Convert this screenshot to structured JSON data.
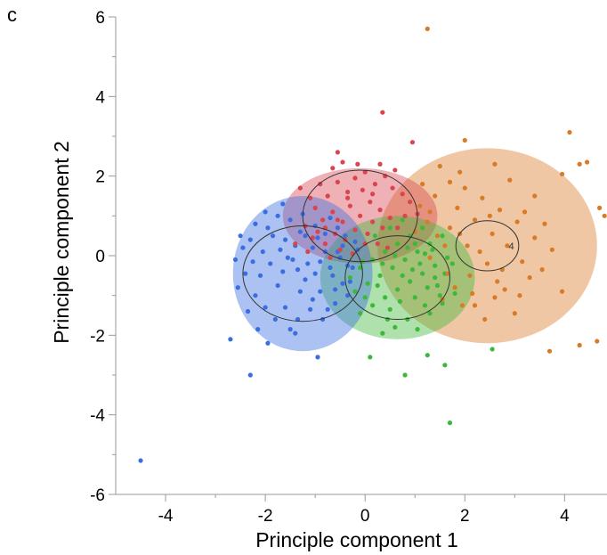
{
  "panel_label": "c",
  "chart_data": {
    "type": "scatter",
    "xlabel": "Principle component 1",
    "ylabel": "Principle component 2",
    "xlim": [
      -5,
      4.85
    ],
    "ylim": [
      -6,
      6
    ],
    "xticks": [
      -4,
      -2,
      0,
      2,
      4
    ],
    "yticks": [
      -6,
      -4,
      -2,
      0,
      2,
      4,
      6
    ],
    "grid": false,
    "colors": {
      "blue": "#3a6ee0",
      "red": "#d9444f",
      "green": "#3db83a",
      "orange": "#d97a26"
    },
    "clusters": [
      {
        "color": "orange",
        "center": [
          2.45,
          0.25
        ],
        "rx": 2.2,
        "ry": 2.45,
        "circle_r": 0.63,
        "label": "4"
      },
      {
        "color": "red",
        "center": [
          -0.1,
          1.0
        ],
        "rx": 1.55,
        "ry": 1.2,
        "circle_r": 1.15,
        "label": ""
      },
      {
        "color": "green",
        "center": [
          0.65,
          -0.55
        ],
        "rx": 1.55,
        "ry": 1.55,
        "circle_r": 1.05,
        "label": ""
      },
      {
        "color": "blue",
        "center": [
          -1.25,
          -0.45
        ],
        "rx": 1.4,
        "ry": 1.95,
        "circle_r": 1.2,
        "label": ""
      }
    ],
    "points": [
      {
        "color": "blue",
        "xy": [
          [
            -4.5,
            -5.15
          ],
          [
            -2.7,
            -2.1
          ],
          [
            -2.3,
            -3.0
          ],
          [
            -1.95,
            -2.2
          ],
          [
            -1.4,
            -1.95
          ],
          [
            -0.95,
            -2.55
          ],
          [
            -2.35,
            -1.4
          ],
          [
            -2.55,
            -0.8
          ],
          [
            -2.45,
            0.2
          ],
          [
            -2.2,
            0.8
          ],
          [
            -2.0,
            1.1
          ],
          [
            -1.75,
            1.0
          ],
          [
            -1.6,
            0.4
          ],
          [
            -1.45,
            -0.1
          ],
          [
            -1.3,
            0.6
          ],
          [
            -1.2,
            -0.6
          ],
          [
            -1.05,
            0.2
          ],
          [
            -0.9,
            -0.9
          ],
          [
            -0.8,
            0.55
          ],
          [
            -0.7,
            -0.3
          ],
          [
            -0.55,
            0.1
          ],
          [
            -0.45,
            -0.7
          ],
          [
            -1.9,
            -0.2
          ],
          [
            -1.75,
            -0.75
          ],
          [
            -2.1,
            -0.5
          ],
          [
            -2.2,
            -1.0
          ],
          [
            -1.6,
            -1.3
          ],
          [
            -1.35,
            -1.6
          ],
          [
            -1.1,
            -1.35
          ],
          [
            -0.85,
            -1.6
          ],
          [
            -0.6,
            -1.2
          ],
          [
            -0.35,
            -1.0
          ],
          [
            -2.3,
            0.4
          ],
          [
            -2.05,
            0.1
          ],
          [
            -1.85,
            0.5
          ],
          [
            -1.5,
            0.9
          ],
          [
            -1.25,
            1.05
          ],
          [
            -1.0,
            0.75
          ],
          [
            -0.7,
            0.95
          ],
          [
            -0.4,
            0.5
          ],
          [
            -0.25,
            -0.3
          ],
          [
            -0.15,
            0.15
          ],
          [
            -2.6,
            -0.1
          ],
          [
            -2.4,
            -0.45
          ],
          [
            -1.65,
            -0.4
          ],
          [
            -1.4,
            0.25
          ],
          [
            -1.15,
            -0.2
          ],
          [
            -0.95,
            0.45
          ],
          [
            -0.65,
            -0.5
          ],
          [
            -0.5,
            -0.05
          ],
          [
            -1.8,
            -1.6
          ],
          [
            -1.5,
            -1.85
          ],
          [
            -2.0,
            -1.3
          ],
          [
            -0.75,
            -1.35
          ],
          [
            -0.3,
            -0.65
          ],
          [
            -1.3,
            -0.9
          ],
          [
            -1.0,
            -0.45
          ],
          [
            -0.8,
            0.1
          ],
          [
            -0.55,
            0.7
          ],
          [
            -0.35,
            -0.25
          ],
          [
            -2.15,
            -1.85
          ],
          [
            -1.65,
            1.3
          ],
          [
            -1.95,
            0.7
          ],
          [
            -2.5,
            0.5
          ],
          [
            -2.25,
            -0.15
          ],
          [
            -1.55,
            -0.05
          ],
          [
            -1.05,
            -1.1
          ],
          [
            -0.6,
            -0.85
          ],
          [
            -0.2,
            0.35
          ],
          [
            -1.7,
            0.15
          ],
          [
            -1.35,
            -0.35
          ],
          [
            -1.2,
            0.5
          ],
          [
            -0.9,
            -0.15
          ],
          [
            -0.45,
            0.25
          ]
        ]
      },
      {
        "color": "red",
        "xy": [
          [
            0.35,
            3.6
          ],
          [
            0.95,
            2.85
          ],
          [
            -0.55,
            2.6
          ],
          [
            -0.45,
            2.35
          ],
          [
            -1.3,
            1.7
          ],
          [
            -0.9,
            1.8
          ],
          [
            -0.75,
            1.5
          ],
          [
            -0.55,
            1.85
          ],
          [
            -0.35,
            1.6
          ],
          [
            -0.2,
            1.95
          ],
          [
            0.0,
            2.1
          ],
          [
            0.2,
            1.8
          ],
          [
            0.4,
            2.0
          ],
          [
            0.55,
            1.7
          ],
          [
            0.75,
            1.55
          ],
          [
            0.9,
            1.35
          ],
          [
            1.05,
            1.05
          ],
          [
            -1.0,
            1.2
          ],
          [
            -0.85,
            0.9
          ],
          [
            -0.65,
            1.1
          ],
          [
            -0.45,
            0.85
          ],
          [
            -0.3,
            1.25
          ],
          [
            -0.1,
            1.0
          ],
          [
            0.1,
            1.35
          ],
          [
            0.3,
            1.15
          ],
          [
            0.5,
            0.95
          ],
          [
            0.65,
            0.7
          ],
          [
            -1.2,
            0.75
          ],
          [
            -1.05,
            0.45
          ],
          [
            -0.8,
            0.3
          ],
          [
            -0.6,
            0.55
          ],
          [
            -0.4,
            0.4
          ],
          [
            -0.2,
            0.65
          ],
          [
            0.05,
            0.55
          ],
          [
            0.25,
            0.3
          ],
          [
            0.45,
            0.2
          ],
          [
            -1.4,
            0.3
          ],
          [
            -1.15,
            0.1
          ],
          [
            -0.7,
            -0.05
          ],
          [
            -0.5,
            0.15
          ],
          [
            -0.25,
            0.05
          ],
          [
            0.15,
            0.85
          ],
          [
            -0.65,
            2.2
          ],
          [
            -0.15,
            2.3
          ],
          [
            0.3,
            2.3
          ],
          [
            0.6,
            2.15
          ],
          [
            -1.1,
            1.45
          ],
          [
            -0.95,
            0.6
          ],
          [
            0.8,
            1.0
          ],
          [
            -0.35,
            1.45
          ],
          [
            0.0,
            0.3
          ],
          [
            -0.05,
            1.65
          ],
          [
            0.35,
            0.7
          ],
          [
            -0.55,
            0.9
          ],
          [
            -0.8,
            0.7
          ],
          [
            0.15,
            1.55
          ]
        ]
      },
      {
        "color": "green",
        "xy": [
          [
            1.7,
            -4.2
          ],
          [
            0.8,
            -3.0
          ],
          [
            1.25,
            -2.5
          ],
          [
            1.6,
            -2.75
          ],
          [
            0.1,
            -2.55
          ],
          [
            2.55,
            -2.35
          ],
          [
            0.35,
            -1.95
          ],
          [
            0.6,
            -1.8
          ],
          [
            0.85,
            -1.6
          ],
          [
            1.05,
            -1.85
          ],
          [
            1.3,
            -1.45
          ],
          [
            1.55,
            -1.2
          ],
          [
            1.8,
            -0.95
          ],
          [
            -0.1,
            -1.45
          ],
          [
            0.15,
            -1.25
          ],
          [
            0.4,
            -1.05
          ],
          [
            0.65,
            -0.85
          ],
          [
            0.9,
            -0.65
          ],
          [
            1.15,
            -0.45
          ],
          [
            1.4,
            -0.25
          ],
          [
            1.65,
            -0.05
          ],
          [
            -0.2,
            -0.9
          ],
          [
            0.05,
            -0.7
          ],
          [
            0.3,
            -0.5
          ],
          [
            0.55,
            -0.3
          ],
          [
            0.8,
            -0.1
          ],
          [
            1.05,
            0.1
          ],
          [
            1.3,
            0.3
          ],
          [
            1.55,
            0.5
          ],
          [
            -0.1,
            -0.3
          ],
          [
            0.15,
            -0.1
          ],
          [
            0.4,
            0.1
          ],
          [
            0.65,
            0.3
          ],
          [
            0.9,
            0.5
          ],
          [
            1.15,
            0.7
          ],
          [
            0.2,
            0.5
          ],
          [
            0.5,
            0.7
          ],
          [
            0.75,
            0.9
          ],
          [
            1.0,
            -1.05
          ],
          [
            1.2,
            -1.25
          ],
          [
            1.45,
            -0.75
          ],
          [
            0.25,
            -0.75
          ],
          [
            0.5,
            -1.35
          ],
          [
            0.7,
            -1.15
          ],
          [
            0.95,
            -0.35
          ],
          [
            1.2,
            0.05
          ],
          [
            1.4,
            -0.55
          ],
          [
            -0.3,
            -0.55
          ],
          [
            0.0,
            -1.05
          ],
          [
            0.35,
            -0.2
          ],
          [
            0.6,
            0.0
          ],
          [
            0.85,
            0.2
          ],
          [
            1.1,
            -0.2
          ],
          [
            1.35,
            0.15
          ],
          [
            1.6,
            -0.45
          ],
          [
            1.75,
            -0.2
          ],
          [
            1.5,
            -1.0
          ],
          [
            0.45,
            -1.6
          ],
          [
            0.75,
            -0.5
          ],
          [
            1.0,
            0.3
          ],
          [
            -0.05,
            -0.15
          ],
          [
            1.25,
            -0.8
          ]
        ]
      },
      {
        "color": "orange",
        "xy": [
          [
            1.25,
            5.7
          ],
          [
            4.1,
            3.1
          ],
          [
            3.95,
            2.05
          ],
          [
            4.3,
            2.3
          ],
          [
            4.45,
            2.35
          ],
          [
            4.7,
            1.2
          ],
          [
            4.8,
            1.0
          ],
          [
            4.65,
            -2.15
          ],
          [
            4.3,
            -2.25
          ],
          [
            3.7,
            -2.4
          ],
          [
            3.0,
            -1.45
          ],
          [
            2.4,
            -1.6
          ],
          [
            2.2,
            -1.25
          ],
          [
            2.8,
            -0.85
          ],
          [
            3.3,
            -0.55
          ],
          [
            3.55,
            -0.35
          ],
          [
            3.95,
            -0.9
          ],
          [
            3.75,
            0.15
          ],
          [
            3.4,
            0.45
          ],
          [
            3.05,
            0.85
          ],
          [
            2.7,
            1.15
          ],
          [
            2.35,
            1.45
          ],
          [
            2.0,
            1.7
          ],
          [
            1.7,
            1.85
          ],
          [
            1.4,
            1.5
          ],
          [
            1.1,
            1.25
          ],
          [
            2.0,
            2.9
          ],
          [
            1.5,
            2.25
          ],
          [
            2.2,
            0.9
          ],
          [
            1.9,
            0.55
          ],
          [
            1.6,
            0.25
          ],
          [
            1.3,
            -0.05
          ],
          [
            1.0,
            0.6
          ],
          [
            2.55,
            0.55
          ],
          [
            2.85,
            0.25
          ],
          [
            2.45,
            -0.2
          ],
          [
            2.1,
            -0.5
          ],
          [
            1.8,
            -0.8
          ],
          [
            1.55,
            -1.1
          ],
          [
            2.75,
            -0.35
          ],
          [
            3.15,
            -0.15
          ],
          [
            2.9,
            1.9
          ],
          [
            2.6,
            2.3
          ],
          [
            3.4,
            1.5
          ],
          [
            1.85,
            1.2
          ],
          [
            1.25,
            0.85
          ],
          [
            2.3,
            0.1
          ],
          [
            2.05,
            0.25
          ],
          [
            1.7,
            0.7
          ],
          [
            1.45,
            0.5
          ],
          [
            2.15,
            -0.95
          ],
          [
            1.65,
            -0.45
          ],
          [
            1.95,
            -1.25
          ],
          [
            2.6,
            -1.05
          ],
          [
            3.2,
            1.1
          ],
          [
            3.6,
            0.8
          ],
          [
            2.5,
            1.0
          ],
          [
            1.15,
            1.8
          ],
          [
            1.3,
            1.1
          ],
          [
            2.65,
            -0.65
          ],
          [
            3.1,
            -1.0
          ],
          [
            1.9,
            2.1
          ]
        ]
      }
    ]
  }
}
